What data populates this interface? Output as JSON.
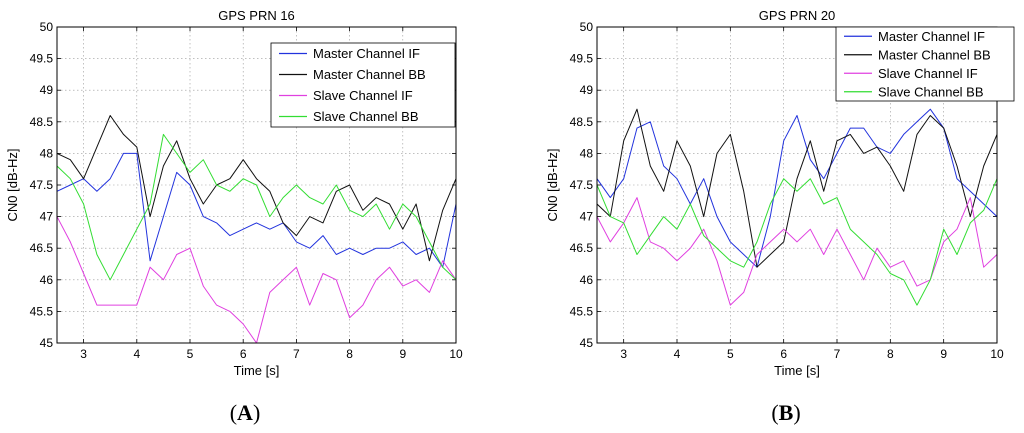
{
  "chart_data": [
    {
      "type": "line",
      "title": "GPS PRN 16",
      "xlabel": "Time [s]",
      "ylabel": "CN0 [dB-Hz]",
      "xlim": [
        2.5,
        10
      ],
      "ylim": [
        45,
        50
      ],
      "xticks": [
        "3",
        "4",
        "5",
        "6",
        "7",
        "8",
        "9",
        "10"
      ],
      "yticks": [
        "45",
        "45.5",
        "46",
        "46.5",
        "47",
        "47.5",
        "48",
        "48.5",
        "49",
        "49.5",
        "50"
      ],
      "grid": true,
      "legend_position": "top-right",
      "panel_label": {
        "open": "(",
        "letter": "A",
        "close": ")"
      },
      "series": [
        {
          "name": "Master Channel IF",
          "color": "#2233dd",
          "x": [
            2.5,
            2.75,
            3.0,
            3.25,
            3.5,
            3.75,
            4.0,
            4.25,
            4.5,
            4.75,
            5.0,
            5.25,
            5.5,
            5.75,
            6.0,
            6.25,
            6.5,
            6.75,
            7.0,
            7.25,
            7.5,
            7.75,
            8.0,
            8.25,
            8.5,
            8.75,
            9.0,
            9.25,
            9.5,
            9.75,
            10.0
          ],
          "y": [
            47.4,
            47.5,
            47.6,
            47.4,
            47.6,
            48.0,
            48.0,
            46.3,
            47.0,
            47.7,
            47.5,
            47.0,
            46.9,
            46.7,
            46.8,
            46.9,
            46.8,
            46.9,
            46.6,
            46.5,
            46.7,
            46.4,
            46.5,
            46.4,
            46.5,
            46.5,
            46.6,
            46.4,
            46.5,
            46.2,
            47.2
          ]
        },
        {
          "name": "Master Channel BB",
          "color": "#111111",
          "x": [
            2.5,
            2.75,
            3.0,
            3.25,
            3.5,
            3.75,
            4.0,
            4.25,
            4.5,
            4.75,
            5.0,
            5.25,
            5.5,
            5.75,
            6.0,
            6.25,
            6.5,
            6.75,
            7.0,
            7.25,
            7.5,
            7.75,
            8.0,
            8.25,
            8.5,
            8.75,
            9.0,
            9.25,
            9.5,
            9.75,
            10.0
          ],
          "y": [
            48.0,
            47.9,
            47.6,
            48.1,
            48.6,
            48.3,
            48.1,
            47.0,
            47.8,
            48.2,
            47.6,
            47.2,
            47.5,
            47.6,
            47.9,
            47.6,
            47.4,
            46.9,
            46.7,
            47.0,
            46.9,
            47.4,
            47.5,
            47.1,
            47.3,
            47.2,
            46.8,
            47.2,
            46.3,
            47.1,
            47.6
          ]
        },
        {
          "name": "Slave Channel IF",
          "color": "#e040e0",
          "x": [
            2.5,
            2.75,
            3.0,
            3.25,
            3.5,
            3.75,
            4.0,
            4.25,
            4.5,
            4.75,
            5.0,
            5.25,
            5.5,
            5.75,
            6.0,
            6.25,
            6.5,
            6.75,
            7.0,
            7.25,
            7.5,
            7.75,
            8.0,
            8.25,
            8.5,
            8.75,
            9.0,
            9.25,
            9.5,
            9.75,
            10.0
          ],
          "y": [
            47.0,
            46.6,
            46.1,
            45.6,
            45.6,
            45.6,
            45.6,
            46.2,
            46.0,
            46.4,
            46.5,
            45.9,
            45.6,
            45.5,
            45.3,
            45.0,
            45.8,
            46.0,
            46.2,
            45.6,
            46.1,
            46.0,
            45.4,
            45.6,
            46.0,
            46.2,
            45.9,
            46.0,
            45.8,
            46.3,
            46.0
          ]
        },
        {
          "name": "Slave Channel BB",
          "color": "#33dd33",
          "x": [
            2.5,
            2.75,
            3.0,
            3.25,
            3.5,
            3.75,
            4.0,
            4.25,
            4.5,
            4.75,
            5.0,
            5.25,
            5.5,
            5.75,
            6.0,
            6.25,
            6.5,
            6.75,
            7.0,
            7.25,
            7.5,
            7.75,
            8.0,
            8.25,
            8.5,
            8.75,
            9.0,
            9.25,
            9.5,
            9.75,
            10.0
          ],
          "y": [
            47.8,
            47.6,
            47.2,
            46.4,
            46.0,
            46.4,
            46.8,
            47.2,
            48.3,
            48.0,
            47.7,
            47.9,
            47.5,
            47.4,
            47.6,
            47.5,
            47.0,
            47.3,
            47.5,
            47.3,
            47.2,
            47.5,
            47.1,
            47.0,
            47.2,
            46.8,
            47.2,
            47.0,
            46.6,
            46.2,
            46.0
          ]
        }
      ]
    },
    {
      "type": "line",
      "title": "GPS PRN 20",
      "xlabel": "Time [s]",
      "ylabel": "CN0 [dB-Hz]",
      "xlim": [
        2.5,
        10
      ],
      "ylim": [
        45,
        50
      ],
      "xticks": [
        "3",
        "4",
        "5",
        "6",
        "7",
        "8",
        "9",
        "10"
      ],
      "yticks": [
        "45",
        "45.5",
        "46",
        "46.5",
        "47",
        "47.5",
        "48",
        "48.5",
        "49",
        "49.5",
        "50"
      ],
      "grid": true,
      "legend_position": "top-right",
      "panel_label": {
        "open": "(",
        "letter": "B",
        "close": ")"
      },
      "series": [
        {
          "name": "Master Channel IF",
          "color": "#2233dd",
          "x": [
            2.5,
            2.75,
            3.0,
            3.25,
            3.5,
            3.75,
            4.0,
            4.25,
            4.5,
            4.75,
            5.0,
            5.25,
            5.5,
            5.75,
            6.0,
            6.25,
            6.5,
            6.75,
            7.0,
            7.25,
            7.5,
            7.75,
            8.0,
            8.25,
            8.5,
            8.75,
            9.0,
            9.25,
            9.5,
            9.75,
            10.0
          ],
          "y": [
            47.6,
            47.3,
            47.6,
            48.4,
            48.5,
            47.8,
            47.6,
            47.2,
            47.6,
            47.0,
            46.6,
            46.4,
            46.2,
            47.0,
            48.2,
            48.6,
            47.9,
            47.6,
            48.0,
            48.4,
            48.4,
            48.1,
            48.0,
            48.3,
            48.5,
            48.7,
            48.4,
            47.6,
            47.4,
            47.2,
            47.0
          ]
        },
        {
          "name": "Master Channel BB",
          "color": "#111111",
          "x": [
            2.5,
            2.75,
            3.0,
            3.25,
            3.5,
            3.75,
            4.0,
            4.25,
            4.5,
            4.75,
            5.0,
            5.25,
            5.5,
            5.75,
            6.0,
            6.25,
            6.5,
            6.75,
            7.0,
            7.25,
            7.5,
            7.75,
            8.0,
            8.25,
            8.5,
            8.75,
            9.0,
            9.25,
            9.5,
            9.75,
            10.0
          ],
          "y": [
            47.2,
            47.0,
            48.2,
            48.7,
            47.8,
            47.4,
            48.2,
            47.8,
            47.0,
            48.0,
            48.3,
            47.4,
            46.2,
            46.4,
            46.6,
            47.6,
            48.2,
            47.4,
            48.2,
            48.3,
            48.0,
            48.1,
            47.8,
            47.4,
            48.3,
            48.6,
            48.4,
            47.8,
            47.0,
            47.8,
            48.3
          ]
        },
        {
          "name": "Slave Channel IF",
          "color": "#e040e0",
          "x": [
            2.5,
            2.75,
            3.0,
            3.25,
            3.5,
            3.75,
            4.0,
            4.25,
            4.5,
            4.75,
            5.0,
            5.25,
            5.5,
            5.75,
            6.0,
            6.25,
            6.5,
            6.75,
            7.0,
            7.25,
            7.5,
            7.75,
            8.0,
            8.25,
            8.5,
            8.75,
            9.0,
            9.25,
            9.5,
            9.75,
            10.0
          ],
          "y": [
            47.0,
            46.6,
            46.9,
            47.3,
            46.6,
            46.5,
            46.3,
            46.5,
            46.8,
            46.3,
            45.6,
            45.8,
            46.4,
            46.6,
            46.8,
            46.6,
            46.8,
            46.4,
            46.8,
            46.4,
            46.0,
            46.5,
            46.2,
            46.3,
            45.9,
            46.0,
            46.6,
            46.8,
            47.3,
            46.2,
            46.4
          ]
        },
        {
          "name": "Slave Channel BB",
          "color": "#33dd33",
          "x": [
            2.5,
            2.75,
            3.0,
            3.25,
            3.5,
            3.75,
            4.0,
            4.25,
            4.5,
            4.75,
            5.0,
            5.25,
            5.5,
            5.75,
            6.0,
            6.25,
            6.5,
            6.75,
            7.0,
            7.25,
            7.5,
            7.75,
            8.0,
            8.25,
            8.5,
            8.75,
            9.0,
            9.25,
            9.5,
            9.75,
            10.0
          ],
          "y": [
            47.5,
            47.0,
            46.9,
            46.4,
            46.7,
            47.0,
            46.8,
            47.2,
            46.7,
            46.5,
            46.3,
            46.2,
            46.6,
            47.2,
            47.6,
            47.4,
            47.6,
            47.2,
            47.3,
            46.8,
            46.6,
            46.4,
            46.1,
            46.0,
            45.6,
            46.0,
            46.8,
            46.4,
            46.9,
            47.1,
            47.6
          ]
        }
      ]
    }
  ]
}
